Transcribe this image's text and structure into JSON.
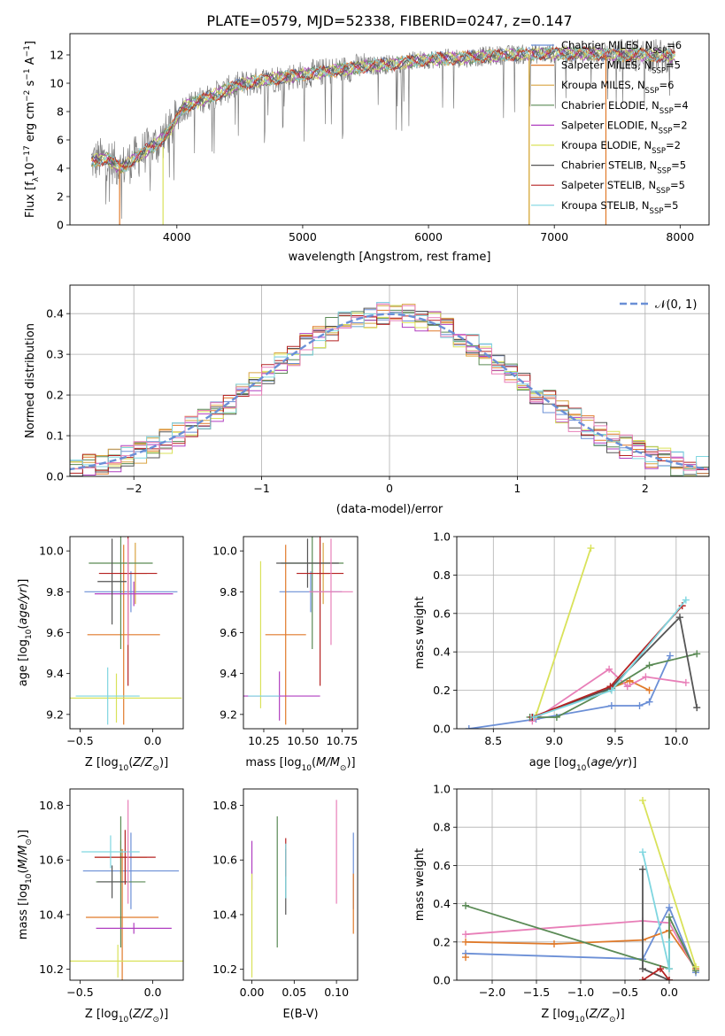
{
  "figure_title": "PLATE=0579, MJD=52338, FIBERID=0247, z=0.147",
  "colors": {
    "Chabrier MILES": "#6b8fd6",
    "Salpeter MILES": "#e07a2a",
    "Kroupa MILES": "#d9a441",
    "Chabrier ELODIE": "#5a8a55",
    "Salpeter ELODIE": "#b03fc0",
    "Kroupa ELODIE": "#d9e25a",
    "Chabrier STELIB": "#555555",
    "Salpeter STELIB": "#b52222",
    "Kroupa STELIB": "#7fd6e0",
    "gray_spec": "#808080",
    "pink": "#e87fb8",
    "gaussian": "#6a8fd6"
  },
  "chart_data": [
    {
      "type": "line",
      "title": "PLATE=0579, MJD=52338, FIBERID=0247, z=0.147",
      "xlabel": "wavelength [Angstrom, rest frame]",
      "ylabel": "Flux [f_λ 10^-17 erg cm^-2 s^-1 A^-1]",
      "xlim": [
        3150,
        8230
      ],
      "ylim": [
        0,
        13.5
      ],
      "xticks": [
        "4000",
        "5000",
        "6000",
        "7000",
        "8000"
      ],
      "yticks": [
        "0",
        "2",
        "4",
        "6",
        "8",
        "10",
        "12"
      ],
      "legend_position": "top-right",
      "legend": [
        {
          "label": "Chabrier MILES, N",
          "sub": "SSP",
          "suffix": "=6"
        },
        {
          "label": "Salpeter MILES, N",
          "sub": "SSP",
          "suffix": "=5"
        },
        {
          "label": "Kroupa MILES, N",
          "sub": "SSP",
          "suffix": "=6"
        },
        {
          "label": "Chabrier ELODIE, N",
          "sub": "SSP",
          "suffix": "=4"
        },
        {
          "label": "Salpeter ELODIE, N",
          "sub": "SSP",
          "suffix": "=2"
        },
        {
          "label": "Kroupa ELODIE, N",
          "sub": "SSP",
          "suffix": "=2"
        },
        {
          "label": "Chabrier STELIB, N",
          "sub": "SSP",
          "suffix": "=5"
        },
        {
          "label": "Salpeter STELIB, N",
          "sub": "SSP",
          "suffix": "=5"
        },
        {
          "label": "Kroupa STELIB, N",
          "sub": "SSP",
          "suffix": "=5"
        }
      ],
      "continuum": [
        [
          3320,
          4.5
        ],
        [
          3450,
          4.7
        ],
        [
          3550,
          4.0
        ],
        [
          3650,
          4.6
        ],
        [
          3750,
          5.2
        ],
        [
          3850,
          5.8
        ],
        [
          3950,
          6.7
        ],
        [
          4050,
          8.3
        ],
        [
          4250,
          9.0
        ],
        [
          4500,
          9.9
        ],
        [
          4750,
          10.3
        ],
        [
          5000,
          10.6
        ],
        [
          5250,
          10.9
        ],
        [
          5500,
          11.2
        ],
        [
          5750,
          11.4
        ],
        [
          6000,
          11.7
        ],
        [
          6300,
          11.8
        ],
        [
          6600,
          12.0
        ],
        [
          7000,
          12.1
        ],
        [
          7300,
          12.1
        ],
        [
          7500,
          12.0
        ],
        [
          7700,
          12.0
        ],
        [
          7950,
          11.9
        ]
      ],
      "cutoffs": [
        {
          "x": 3545,
          "color_key": "Salpeter MILES",
          "top": 4.6
        },
        {
          "x": 3890,
          "color_key": "Kroupa ELODIE",
          "top": 5.5
        },
        {
          "x": 6800,
          "color_key": "Kroupa ELODIE",
          "top": 12.0
        },
        {
          "x": 6800,
          "color_key": "Kroupa MILES",
          "top": 12.0
        },
        {
          "x": 7410,
          "color_key": "Salpeter MILES",
          "top": 12.0
        }
      ]
    },
    {
      "type": "histogram",
      "xlabel": "(data-model)/error",
      "ylabel": "Normed distribution",
      "xlim": [
        -2.5,
        2.5
      ],
      "ylim": [
        0,
        0.47
      ],
      "xticks": [
        "−2",
        "−1",
        "0",
        "1",
        "2"
      ],
      "yticks": [
        "0.0",
        "0.1",
        "0.2",
        "0.3",
        "0.4"
      ],
      "grid": true,
      "legend_position": "top-right",
      "legend_label": "𝒩(0, 1)",
      "bin_width": 0.1,
      "gaussian": {
        "mean": 0,
        "sigma": 1
      }
    },
    {
      "type": "errorbar",
      "xlabel": "Z [log10(Z/Z⊙)]",
      "ylabel": "age  [log10(age/yr)]",
      "xlim": [
        -0.57,
        0.21
      ],
      "ylim": [
        9.13,
        10.07
      ],
      "xticks": [
        "−0.5",
        "0.0"
      ],
      "yticks": [
        "9.2",
        "9.4",
        "9.6",
        "9.8",
        "10.0"
      ],
      "points": [
        {
          "s": "Chabrier MILES",
          "x": -0.15,
          "xerr": 0.32,
          "y": 9.8,
          "yerr": 0.1
        },
        {
          "s": "Salpeter MILES",
          "x": -0.2,
          "xerr": 0.25,
          "y": 9.59,
          "yerr": 0.44
        },
        {
          "s": "Kroupa MILES",
          "x": -0.12,
          "xerr": 0.08,
          "y": 9.89,
          "yerr": 0.15
        },
        {
          "s": "Chabrier ELODIE",
          "x": -0.22,
          "xerr": 0.22,
          "y": 9.94,
          "yerr": 0.42
        },
        {
          "s": "Salpeter ELODIE",
          "x": -0.13,
          "xerr": 0.27,
          "y": 9.79,
          "yerr": 0.06
        },
        {
          "s": "Kroupa ELODIE",
          "x": -0.25,
          "xerr": 0.45,
          "y": 9.28,
          "yerr": 0.12
        },
        {
          "s": "Chabrier STELIB",
          "x": -0.28,
          "xerr": 0.1,
          "y": 9.85,
          "yerr": 0.21
        },
        {
          "s": "Salpeter STELIB",
          "x": -0.17,
          "xerr": 0.2,
          "y": 9.89,
          "yerr": 0.55
        },
        {
          "s": "Kroupa STELIB",
          "x": -0.31,
          "xerr": 0.22,
          "y": 9.29,
          "yerr": 0.14
        },
        {
          "s": "pink",
          "x": -0.17,
          "xerr": 0.0,
          "y": 9.8,
          "yerr": 0.26
        }
      ]
    },
    {
      "type": "errorbar",
      "xlabel": "mass [log10(M/M⊙)]",
      "xlim": [
        10.12,
        10.85
      ],
      "ylim": [
        9.13,
        10.07
      ],
      "xticks": [
        "10.25",
        "10.50",
        "10.75"
      ],
      "yticks": [
        "9.2",
        "9.4",
        "9.6",
        "9.8",
        "10.0"
      ],
      "points": [
        {
          "s": "Chabrier MILES",
          "x": 10.55,
          "xerr": 0.2,
          "y": 9.8,
          "yerr": 0.1
        },
        {
          "s": "Salpeter MILES",
          "x": 10.39,
          "xerr": 0.13,
          "y": 9.59,
          "yerr": 0.44
        },
        {
          "s": "Kroupa MILES",
          "x": 10.63,
          "xerr": 0.04,
          "y": 9.89,
          "yerr": 0.15
        },
        {
          "s": "Chabrier ELODIE",
          "x": 10.56,
          "xerr": 0.2,
          "y": 9.94,
          "yerr": 0.42
        },
        {
          "s": "Salpeter ELODIE",
          "x": 10.35,
          "xerr": 0.26,
          "y": 9.29,
          "yerr": 0.12
        },
        {
          "s": "Kroupa ELODIE",
          "x": 10.23,
          "xerr": 0.0,
          "y": 9.59,
          "yerr": 0.36
        },
        {
          "s": "Chabrier STELIB",
          "x": 10.53,
          "xerr": 0.2,
          "y": 9.94,
          "yerr": 0.12
        },
        {
          "s": "Salpeter STELIB",
          "x": 10.61,
          "xerr": 0.15,
          "y": 9.89,
          "yerr": 0.55
        },
        {
          "s": "Kroupa STELIB",
          "x": 10.25,
          "xerr": 0.1,
          "y": 9.29,
          "yerr": 0.0
        },
        {
          "s": "pink",
          "x": 10.68,
          "xerr": 0.14,
          "y": 9.8,
          "yerr": 0.26
        }
      ]
    },
    {
      "type": "line",
      "xlabel": "age  [log10(age/yr)]",
      "ylabel": "mass weight",
      "xlim": [
        8.2,
        10.27
      ],
      "ylim": [
        0,
        1
      ],
      "xticks": [
        "8.5",
        "9.0",
        "9.5",
        "10.0"
      ],
      "yticks": [
        "0.0",
        "0.2",
        "0.4",
        "0.6",
        "0.8",
        "1.0"
      ],
      "grid": true,
      "series": [
        {
          "s": "Chabrier MILES",
          "points": [
            [
              8.3,
              0.0
            ],
            [
              8.85,
              0.05
            ],
            [
              9.47,
              0.12
            ],
            [
              9.7,
              0.12
            ],
            [
              9.78,
              0.14
            ],
            [
              9.95,
              0.38
            ]
          ]
        },
        {
          "s": "Salpeter MILES",
          "points": [
            [
              8.82,
              0.06
            ],
            [
              9.46,
              0.21
            ],
            [
              9.62,
              0.25
            ],
            [
              9.78,
              0.2
            ]
          ]
        },
        {
          "s": "pink",
          "points": [
            [
              8.82,
              0.04
            ],
            [
              9.45,
              0.31
            ],
            [
              9.6,
              0.22
            ],
            [
              9.75,
              0.27
            ],
            [
              10.08,
              0.24
            ]
          ]
        },
        {
          "s": "Chabrier ELODIE",
          "points": [
            [
              8.8,
              0.06
            ],
            [
              9.02,
              0.06
            ],
            [
              9.47,
              0.21
            ],
            [
              9.78,
              0.33
            ],
            [
              10.17,
              0.39
            ]
          ]
        },
        {
          "s": "Kroupa ELODIE",
          "points": [
            [
              8.85,
              0.07
            ],
            [
              9.3,
              0.94
            ]
          ]
        },
        {
          "s": "Chabrier STELIB",
          "points": [
            [
              8.82,
              0.06
            ],
            [
              9.46,
              0.21
            ],
            [
              10.03,
              0.58
            ],
            [
              10.17,
              0.11
            ]
          ]
        },
        {
          "s": "Salpeter STELIB",
          "points": [
            [
              8.82,
              0.06
            ],
            [
              9.46,
              0.22
            ],
            [
              10.05,
              0.64
            ]
          ]
        },
        {
          "s": "Kroupa STELIB",
          "points": [
            [
              8.83,
              0.06
            ],
            [
              9.47,
              0.2
            ],
            [
              10.08,
              0.67
            ]
          ]
        }
      ]
    },
    {
      "type": "errorbar",
      "xlabel": "Z [log10(Z/Z⊙)]",
      "ylabel": "mass [log10(M/M⊙)]",
      "xlim": [
        -0.57,
        0.21
      ],
      "ylim": [
        10.16,
        10.86
      ],
      "xticks": [
        "−0.5",
        "0.0"
      ],
      "yticks": [
        "10.2",
        "10.4",
        "10.6",
        "10.8"
      ],
      "points": [
        {
          "s": "Chabrier MILES",
          "x": -0.15,
          "xerr": 0.33,
          "y": 10.56,
          "yerr": 0.14
        },
        {
          "s": "Salpeter MILES",
          "x": -0.21,
          "xerr": 0.25,
          "y": 10.39,
          "yerr": 0.25
        },
        {
          "s": "Kroupa MILES",
          "x": -0.22,
          "xerr": 0.18,
          "y": 10.61,
          "yerr": 0.06
        },
        {
          "s": "Chabrier ELODIE",
          "x": -0.22,
          "xerr": 0.17,
          "y": 10.52,
          "yerr": 0.24
        },
        {
          "s": "Salpeter ELODIE",
          "x": -0.13,
          "xerr": 0.26,
          "y": 10.35,
          "yerr": 0.02
        },
        {
          "s": "Kroupa ELODIE",
          "x": -0.24,
          "xerr": 0.45,
          "y": 10.23,
          "yerr": 0.06
        },
        {
          "s": "Chabrier STELIB",
          "x": -0.28,
          "xerr": 0.1,
          "y": 10.52,
          "yerr": 0.06
        },
        {
          "s": "Salpeter STELIB",
          "x": -0.19,
          "xerr": 0.21,
          "y": 10.61,
          "yerr": 0.1
        },
        {
          "s": "Kroupa STELIB",
          "x": -0.29,
          "xerr": 0.2,
          "y": 10.63,
          "yerr": 0.06
        },
        {
          "s": "pink",
          "x": -0.17,
          "xerr": 0.0,
          "y": 10.63,
          "yerr": 0.19
        }
      ]
    },
    {
      "type": "errorbar",
      "xlabel": "E(B-V)",
      "xlim": [
        -0.01,
        0.125
      ],
      "ylim": [
        10.16,
        10.86
      ],
      "xticks": [
        "0.00",
        "0.05",
        "0.10"
      ],
      "yticks": [
        "10.2",
        "10.4",
        "10.6",
        "10.8"
      ],
      "points": [
        {
          "s": "Chabrier MILES",
          "x": 0.12,
          "xerr": 0.0,
          "y": 10.56,
          "yerr": 0.14
        },
        {
          "s": "Salpeter MILES",
          "x": 0.12,
          "xerr": 0.0,
          "y": 10.44,
          "yerr": 0.11
        },
        {
          "s": "Chabrier ELODIE",
          "x": 0.03,
          "xerr": 0.0,
          "y": 10.52,
          "yerr": 0.24
        },
        {
          "s": "Salpeter ELODIE",
          "x": 0.0,
          "xerr": 0.0,
          "y": 10.58,
          "yerr": 0.09
        },
        {
          "s": "Kroupa ELODIE",
          "x": 0.0,
          "xerr": 0.0,
          "y": 10.36,
          "yerr": 0.19
        },
        {
          "s": "Chabrier STELIB",
          "x": 0.04,
          "xerr": 0.0,
          "y": 10.52,
          "yerr": 0.12
        },
        {
          "s": "Salpeter STELIB",
          "x": 0.04,
          "xerr": 0.0,
          "y": 10.61,
          "yerr": 0.07
        },
        {
          "s": "Kroupa STELIB",
          "x": 0.04,
          "xerr": 0.0,
          "y": 10.56,
          "yerr": 0.1
        },
        {
          "s": "pink",
          "x": 0.1,
          "xerr": 0.0,
          "y": 10.63,
          "yerr": 0.19
        }
      ]
    },
    {
      "type": "line",
      "xlabel": "Z [log10(Z/Z⊙)]",
      "ylabel": "mass weight",
      "xlim": [
        -2.4,
        0.45
      ],
      "ylim": [
        0,
        1
      ],
      "xticks": [
        "−2.0",
        "−1.5",
        "−1.0",
        "−0.5",
        "0.0"
      ],
      "yticks": [
        "0.0",
        "0.2",
        "0.4",
        "0.6",
        "0.8",
        "1.0"
      ],
      "grid": true,
      "series": [
        {
          "s": "Chabrier MILES",
          "points": [
            [
              -2.3,
              0.14
            ],
            [
              -0.3,
              0.11
            ],
            [
              0.0,
              0.38
            ],
            [
              0.3,
              0.04
            ]
          ]
        },
        {
          "s": "Salpeter MILES",
          "points": [
            [
              -2.3,
              0.2
            ],
            [
              -1.3,
              0.19
            ],
            [
              -0.3,
              0.21
            ],
            [
              0.0,
              0.26
            ],
            [
              0.3,
              0.06
            ]
          ]
        },
        {
          "s": "pink",
          "points": [
            [
              -2.3,
              0.24
            ],
            [
              -0.3,
              0.31
            ],
            [
              0.0,
              0.3
            ],
            [
              0.3,
              0.05
            ]
          ]
        },
        {
          "s": "Chabrier ELODIE",
          "points": [
            [
              -2.3,
              0.39
            ],
            [
              0.0,
              0.06
            ],
            [
              0.0,
              0.33
            ],
            [
              0.3,
              0.05
            ]
          ]
        },
        {
          "s": "Kroupa ELODIE",
          "points": [
            [
              -0.3,
              0.94
            ],
            [
              0.3,
              0.07
            ]
          ]
        },
        {
          "s": "Chabrier STELIB",
          "points": [
            [
              -0.3,
              0.58
            ],
            [
              -0.3,
              0.06
            ],
            [
              0.0,
              0.0
            ]
          ]
        },
        {
          "s": "Salpeter STELIB",
          "points": [
            [
              -0.3,
              0.0
            ],
            [
              -0.1,
              0.06
            ],
            [
              0.0,
              0.0
            ]
          ]
        },
        {
          "s": "Kroupa STELIB",
          "points": [
            [
              -0.3,
              0.67
            ],
            [
              0.0,
              0.06
            ],
            [
              0.0,
              0.2
            ]
          ]
        },
        {
          "s": "Salpeter MILES",
          "points": [
            [
              -2.3,
              0.12
            ]
          ]
        }
      ]
    }
  ]
}
